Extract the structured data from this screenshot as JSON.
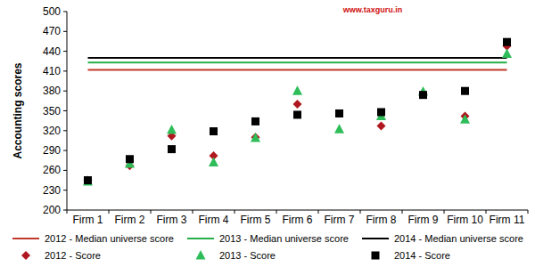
{
  "chart_data": {
    "type": "scatter",
    "y_label": "Accounting scores",
    "annotation": "www.taxguru.in",
    "categories": [
      "Firm 1",
      "Firm 2",
      "Firm 3",
      "Firm 4",
      "Firm 5",
      "Firm 6",
      "Firm 7",
      "Firm 8",
      "Firm 9",
      "Firm 10",
      "Firm 11"
    ],
    "ylim": [
      200,
      500
    ],
    "yticks": [
      200,
      230,
      260,
      290,
      320,
      350,
      380,
      410,
      440,
      470,
      500
    ],
    "grid": false,
    "legend": "bottom",
    "series": [
      {
        "name": "2012 - Median universe score",
        "type": "line",
        "line_style": "solid",
        "color": "#c0392b",
        "values": [
          412,
          412,
          412,
          412,
          412,
          412,
          412,
          412,
          412,
          412,
          412
        ]
      },
      {
        "name": "2013 - Median universe score",
        "type": "line",
        "line_style": "solid",
        "color": "#27ae48",
        "values": [
          423,
          423,
          423,
          423,
          423,
          423,
          423,
          423,
          423,
          423,
          423
        ]
      },
      {
        "name": "2014 - Median universe score",
        "type": "line",
        "line_style": "solid",
        "color": "#000000",
        "values": [
          430,
          430,
          430,
          430,
          430,
          430,
          430,
          430,
          430,
          430,
          430
        ]
      },
      {
        "name": "2012 - Score",
        "type": "scatter",
        "marker": "diamond",
        "color": "#b0171f",
        "values": [
          245,
          267,
          312,
          282,
          310,
          360,
          null,
          327,
          375,
          342,
          448
        ]
      },
      {
        "name": "2013 - Score",
        "type": "scatter",
        "marker": "triangle",
        "color": "#2ebd59",
        "values": [
          243,
          270,
          321,
          272,
          309,
          380,
          322,
          342,
          379,
          337,
          436
        ]
      },
      {
        "name": "2014 - Score",
        "type": "scatter",
        "marker": "square",
        "color": "#000000",
        "values": [
          245,
          277,
          292,
          319,
          334,
          344,
          346,
          348,
          374,
          380,
          454
        ]
      }
    ]
  }
}
